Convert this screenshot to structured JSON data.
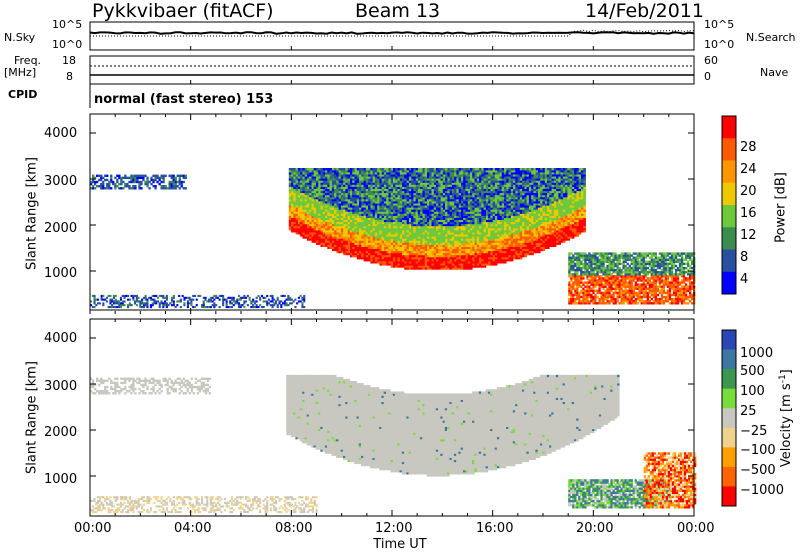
{
  "header": {
    "station": "Pykkvibaer (fitACF)",
    "beam": "Beam 13",
    "date": "14/Feb/2011"
  },
  "summary": {
    "nsky_label": "N.Sky",
    "nsky_ticks": [
      "10^5",
      "10^0"
    ],
    "nsearch_label": "N.Search",
    "nsearch_ticks": [
      "10^5",
      "10^0"
    ],
    "freq_label": "Freq.",
    "freq_unit": "[MHz]",
    "freq_ticks": [
      "18",
      "8"
    ],
    "nave_label": "Nave",
    "nave_ticks": [
      "60",
      "0"
    ],
    "cpid_label": "CPID",
    "cpid_text": "normal (fast stereo) 153"
  },
  "axes": {
    "ylabel": "Slant Range [km]",
    "yticks": [
      "4000",
      "3000",
      "2000",
      "1000"
    ],
    "xlabel": "Time UT",
    "xticks": [
      "00:00",
      "04:00",
      "08:00",
      "12:00",
      "16:00",
      "20:00",
      "00:00"
    ]
  },
  "power_scale": {
    "label": "Power [dB]",
    "ticks": [
      "28",
      "24",
      "20",
      "16",
      "12",
      "8",
      "4"
    ],
    "colors": [
      "#ff0000",
      "#ff5a00",
      "#ff9600",
      "#f0c800",
      "#6ec83c",
      "#3c8c50",
      "#2850a0",
      "#0000ff"
    ]
  },
  "velocity_scale": {
    "label": "Velocity [m s",
    "label_sup": "-1",
    "label_close": "]",
    "ticks": [
      "1000",
      "500",
      "100",
      "25",
      "−25",
      "−100",
      "−500",
      "−1000"
    ],
    "colors": [
      "#2846b4",
      "#3c78a0",
      "#3c9650",
      "#78dc3c",
      "#c8c8c0",
      "#f0d28c",
      "#ffa000",
      "#ff6400",
      "#ff0000"
    ]
  },
  "chart_data": [
    {
      "type": "heatmap",
      "title": "Power [dB]",
      "xlabel": "Time UT",
      "ylabel": "Slant Range [km]",
      "xlim_hours": [
        0,
        24
      ],
      "ylim_km": [
        180,
        4600
      ],
      "color_levels_db": [
        4,
        8,
        12,
        16,
        20,
        24,
        28
      ],
      "regions": [
        {
          "t0": 0.0,
          "t1": 3.8,
          "r0": 2750,
          "r1": 3100,
          "dominant": "blue"
        },
        {
          "t0": 0.0,
          "t1": 8.0,
          "r0": 200,
          "r1": 500,
          "dominant": "blue"
        },
        {
          "t0": 8.0,
          "t1": 19.5,
          "r0": 1000,
          "r1": 1800,
          "dominant": "red"
        },
        {
          "t0": 8.0,
          "t1": 19.5,
          "r0": 1800,
          "r1": 3200,
          "dominant": "green"
        },
        {
          "t0": 19.0,
          "t1": 24.0,
          "r0": 300,
          "r1": 1400,
          "dominant": "red"
        }
      ]
    },
    {
      "type": "heatmap",
      "title": "Velocity [m s-1]",
      "xlabel": "Time UT",
      "ylabel": "Slant Range [km]",
      "xlim_hours": [
        0,
        24
      ],
      "ylim_km": [
        180,
        4600
      ],
      "color_levels_ms": [
        -1000,
        -500,
        -100,
        -25,
        25,
        100,
        500,
        1000
      ],
      "regions": [
        {
          "t0": 0.0,
          "t1": 5.0,
          "r0": 2750,
          "r1": 3150,
          "dominant": "grey"
        },
        {
          "t0": 0.0,
          "t1": 9.0,
          "r0": 200,
          "r1": 600,
          "dominant": "grey-yellow"
        },
        {
          "t0": 7.8,
          "t1": 21.0,
          "r0": 1000,
          "r1": 3200,
          "dominant": "grey"
        },
        {
          "t0": 19.0,
          "t1": 23.0,
          "r0": 300,
          "r1": 900,
          "dominant": "green-blue"
        },
        {
          "t0": 22.0,
          "t1": 24.0,
          "r0": 300,
          "r1": 1500,
          "dominant": "orange"
        }
      ]
    }
  ]
}
